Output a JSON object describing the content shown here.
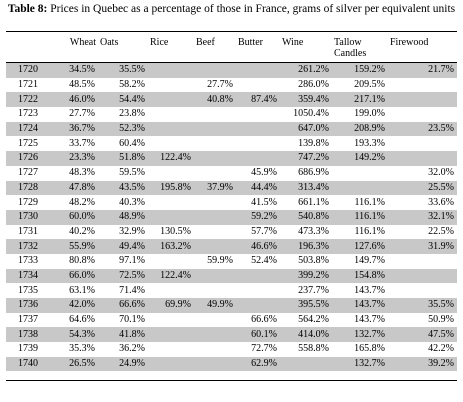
{
  "table": {
    "caption_label": "Table 8:",
    "caption_text": " Prices in Quebec as a percentage of those in France, grams of silver per equivalent units",
    "headers": [
      "",
      "Wheat",
      "Oats",
      "Rice",
      "Beef",
      "Butter",
      "Wine",
      "Tallow Candles",
      "Firewood"
    ],
    "rows": [
      [
        "1720",
        "34.5%",
        "35.5%",
        "",
        "",
        "",
        "261.2%",
        "159.2%",
        "21.7%"
      ],
      [
        "1721",
        "48.5%",
        "58.2%",
        "",
        "27.7%",
        "",
        "286.0%",
        "209.5%",
        ""
      ],
      [
        "1722",
        "46.0%",
        "54.4%",
        "",
        "40.8%",
        "87.4%",
        "359.4%",
        "217.1%",
        ""
      ],
      [
        "1723",
        "27.7%",
        "23.8%",
        "",
        "",
        "",
        "1050.4%",
        "199.0%",
        ""
      ],
      [
        "1724",
        "36.7%",
        "52.3%",
        "",
        "",
        "",
        "647.0%",
        "208.9%",
        "23.5%"
      ],
      [
        "1725",
        "33.7%",
        "60.4%",
        "",
        "",
        "",
        "139.8%",
        "193.3%",
        ""
      ],
      [
        "1726",
        "23.3%",
        "51.8%",
        "122.4%",
        "",
        "",
        "747.2%",
        "149.2%",
        ""
      ],
      [
        "1727",
        "48.3%",
        "59.5%",
        "",
        "",
        "45.9%",
        "686.9%",
        "",
        "32.0%"
      ],
      [
        "1728",
        "47.8%",
        "43.5%",
        "195.8%",
        "37.9%",
        "44.4%",
        "313.4%",
        "",
        "25.5%"
      ],
      [
        "1729",
        "48.2%",
        "40.3%",
        "",
        "",
        "41.5%",
        "661.1%",
        "116.1%",
        "33.6%"
      ],
      [
        "1730",
        "60.0%",
        "48.9%",
        "",
        "",
        "59.2%",
        "540.8%",
        "116.1%",
        "32.1%"
      ],
      [
        "1731",
        "40.2%",
        "32.9%",
        "130.5%",
        "",
        "57.7%",
        "473.3%",
        "116.1%",
        "22.5%"
      ],
      [
        "1732",
        "55.9%",
        "49.4%",
        "163.2%",
        "",
        "46.6%",
        "196.3%",
        "127.6%",
        "31.9%"
      ],
      [
        "1733",
        "80.8%",
        "97.1%",
        "",
        "59.9%",
        "52.4%",
        "503.8%",
        "149.7%",
        ""
      ],
      [
        "1734",
        "66.0%",
        "72.5%",
        "122.4%",
        "",
        "",
        "399.2%",
        "154.8%",
        ""
      ],
      [
        "1735",
        "63.1%",
        "71.4%",
        "",
        "",
        "",
        "237.7%",
        "143.7%",
        ""
      ],
      [
        "1736",
        "42.0%",
        "66.6%",
        "69.9%",
        "49.9%",
        "",
        "395.5%",
        "143.7%",
        "35.5%"
      ],
      [
        "1737",
        "64.6%",
        "70.1%",
        "",
        "",
        "66.6%",
        "564.2%",
        "143.7%",
        "50.9%"
      ],
      [
        "1738",
        "54.3%",
        "41.8%",
        "",
        "",
        "60.1%",
        "414.0%",
        "132.7%",
        "47.5%"
      ],
      [
        "1739",
        "35.3%",
        "36.2%",
        "",
        "",
        "72.7%",
        "558.8%",
        "165.8%",
        "42.2%"
      ],
      [
        "1740",
        "26.5%",
        "24.9%",
        "",
        "",
        "62.9%",
        "",
        "132.7%",
        "39.2%"
      ]
    ]
  }
}
